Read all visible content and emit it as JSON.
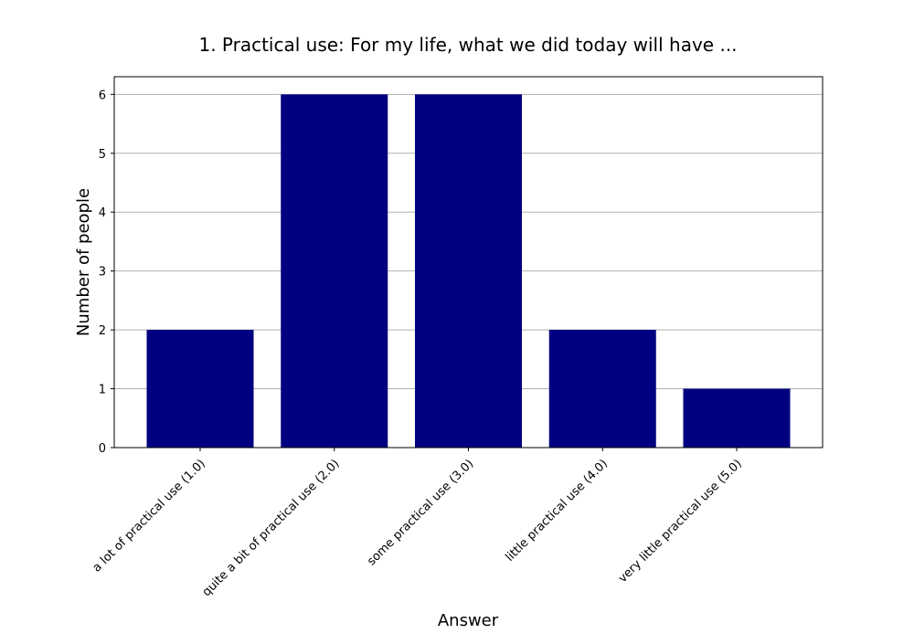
{
  "chart_data": {
    "type": "bar",
    "title": "1. Practical use: For my life, what we did today will have ...",
    "xlabel": "Answer",
    "ylabel": "Number of people",
    "categories": [
      "a lot of practical use (1.0)",
      "quite a bit of practical use (2.0)",
      "some practical use (3.0)",
      "little practical use (4.0)",
      "very little practical use (5.0)"
    ],
    "values": [
      2,
      6,
      6,
      2,
      1
    ],
    "ylim": [
      0,
      6.3
    ],
    "yticks": [
      "0",
      "1",
      "2",
      "3",
      "4",
      "5",
      "6"
    ],
    "grid": "y-axis",
    "bar_color": "#000080",
    "grid_color": "#b0b0b0"
  }
}
